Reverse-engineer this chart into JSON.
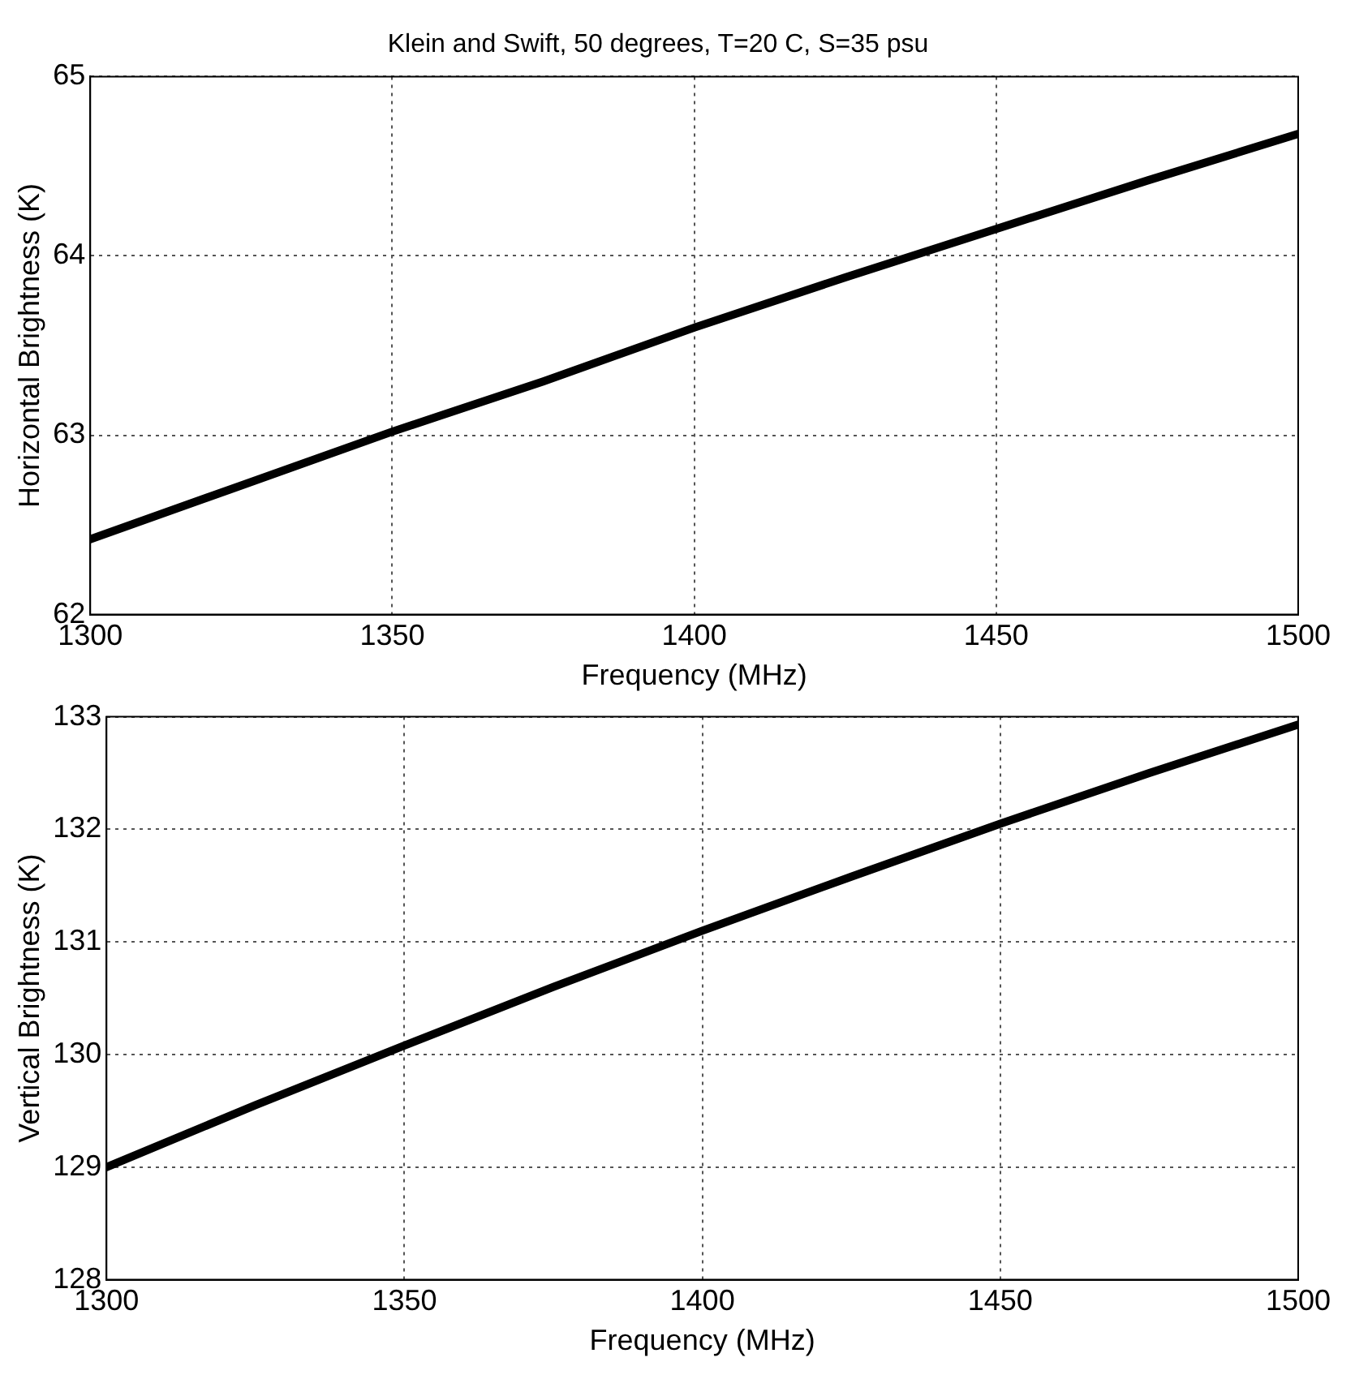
{
  "chart_data": [
    {
      "type": "line",
      "title": "Klein and Swift, 50 degrees, T=20 C, S=35 psu",
      "xlabel": "Frequency (MHz)",
      "ylabel": "Horizontal Brightness (K)",
      "x": [
        1300,
        1325,
        1350,
        1375,
        1400,
        1425,
        1450,
        1475,
        1500
      ],
      "series": [
        {
          "color": "#000000",
          "values": [
            62.42,
            62.72,
            63.02,
            63.3,
            63.6,
            63.88,
            64.15,
            64.42,
            64.68
          ]
        }
      ],
      "xlim": [
        1300,
        1500
      ],
      "xticks": [
        1300,
        1350,
        1400,
        1450,
        1500
      ],
      "ylim": [
        62,
        65
      ],
      "yticks": [
        62,
        63,
        64,
        65
      ],
      "grid": true,
      "line_style": "solid",
      "marker": "none",
      "legend": false
    },
    {
      "type": "line",
      "xlabel": "Frequency (MHz)",
      "ylabel": "Vertical Brightness (K)",
      "x": [
        1300,
        1325,
        1350,
        1375,
        1400,
        1425,
        1450,
        1475,
        1500
      ],
      "series": [
        {
          "color": "#000000",
          "values": [
            129.0,
            129.55,
            130.08,
            130.6,
            131.1,
            131.58,
            132.05,
            132.5,
            132.93
          ]
        }
      ],
      "xlim": [
        1300,
        1500
      ],
      "xticks": [
        1300,
        1350,
        1400,
        1450,
        1500
      ],
      "ylim": [
        128,
        133
      ],
      "yticks": [
        128,
        129,
        130,
        131,
        132,
        133
      ],
      "grid": true,
      "line_style": "solid",
      "marker": "none",
      "legend": false
    }
  ]
}
